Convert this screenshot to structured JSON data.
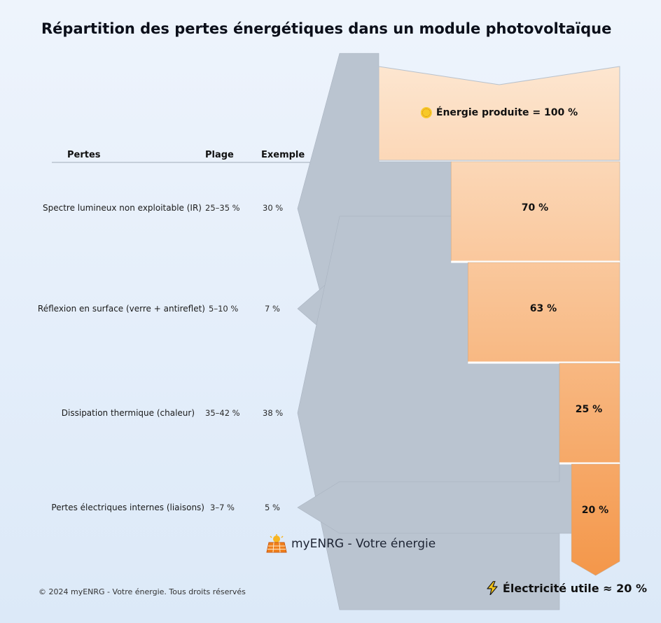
{
  "title": "Répartition des pertes énergétiques dans un module photovoltaïque",
  "table": {
    "headers": {
      "loss": "Pertes",
      "range": "Plage",
      "example": "Exemple"
    }
  },
  "source": {
    "label": "Énergie produite = 100 %",
    "value": 100,
    "icon": "sun-icon"
  },
  "chart_data": {
    "type": "sankey",
    "input": 100,
    "losses": [
      {
        "label": "Spectre lumineux non exploitable (IR)",
        "range": "25–35 %",
        "example": "30 %",
        "value": 30,
        "remaining": 70,
        "remaining_label": "70 %"
      },
      {
        "label": "Réflexion en surface (verre + antireflet)",
        "range": "5–10 %",
        "example": "7 %",
        "value": 7,
        "remaining": 63,
        "remaining_label": "63 %"
      },
      {
        "label": "Dissipation thermique (chaleur)",
        "range": "35–42 %",
        "example": "38 %",
        "value": 38,
        "remaining": 25,
        "remaining_label": "25 %"
      },
      {
        "label": "Pertes électriques internes (liaisons)",
        "range": "3–7 %",
        "example": "5 %",
        "value": 5,
        "remaining": 20,
        "remaining_label": "20 %"
      }
    ]
  },
  "colors": {
    "loss": "#bac4d0",
    "flow_top": "#fde4cc",
    "flow_bottom": "#f39a4e",
    "divider": "#ffffff"
  },
  "brand": {
    "name": "myENRG - Votre énergie",
    "icon": "solar-panel-icon"
  },
  "footer": {
    "copyright": "© 2024 myENRG - Votre énergie. Tous droits réservés"
  },
  "result": {
    "label": "Électricité utile ≈ 20 %",
    "icon": "lightning-icon"
  }
}
